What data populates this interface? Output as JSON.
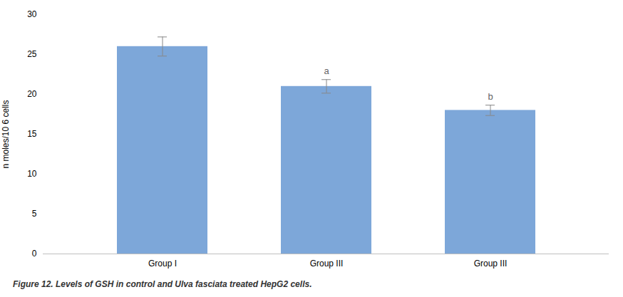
{
  "chart_data": {
    "type": "bar",
    "categories": [
      "Group I",
      "Group III",
      "Group III"
    ],
    "values": [
      26.0,
      21.0,
      18.0
    ],
    "errors": [
      1.2,
      0.85,
      0.65
    ],
    "color": "#7da7d9",
    "ylabel": "n moles/10 6 cells",
    "caption": "Figure 12. Levels of GSH in control and Ulva fasciata treated HepG2 cells.",
    "annotations": [
      {
        "bar_index": 1,
        "text": "a"
      },
      {
        "bar_index": 2,
        "text": "b"
      }
    ],
    "ylim": [
      0,
      30
    ],
    "yticks": [
      0,
      5,
      10,
      15,
      20,
      25,
      30
    ],
    "grid": false
  }
}
